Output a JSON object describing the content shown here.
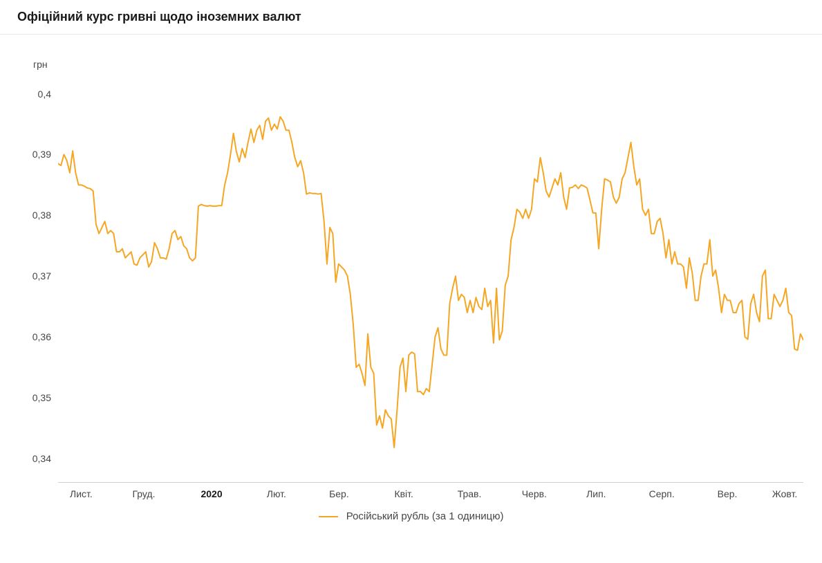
{
  "title": "Офіційний курс гривні щодо іноземних валют",
  "y_axis_title": "грн",
  "legend_label": "Російський рубль (за 1 одиницю)",
  "chart": {
    "type": "line",
    "line_color": "#f5a623",
    "line_width": 2,
    "background_color": "#ffffff",
    "axis_line_color": "#d0d0d0",
    "tick_mark_color": "#d0d0d0",
    "text_color": "#464646",
    "y_ticks": [
      {
        "value": 0.34,
        "label": "0,34"
      },
      {
        "value": 0.35,
        "label": "0,35"
      },
      {
        "value": 0.36,
        "label": "0,36"
      },
      {
        "value": 0.37,
        "label": "0,37"
      },
      {
        "value": 0.38,
        "label": "0,38"
      },
      {
        "value": 0.39,
        "label": "0,39"
      },
      {
        "value": 0.4,
        "label": "0,4"
      }
    ],
    "x_ticks": [
      {
        "x": 0.031,
        "label": "Лист.",
        "bold": false
      },
      {
        "x": 0.115,
        "label": "Груд.",
        "bold": false
      },
      {
        "x": 0.206,
        "label": "2020",
        "bold": true
      },
      {
        "x": 0.293,
        "label": "Лют.",
        "bold": false
      },
      {
        "x": 0.377,
        "label": "Бер.",
        "bold": false
      },
      {
        "x": 0.464,
        "label": "Квіт.",
        "bold": false
      },
      {
        "x": 0.552,
        "label": "Трав.",
        "bold": false
      },
      {
        "x": 0.639,
        "label": "Черв.",
        "bold": false
      },
      {
        "x": 0.722,
        "label": "Лип.",
        "bold": false
      },
      {
        "x": 0.81,
        "label": "Серп.",
        "bold": false
      },
      {
        "x": 0.898,
        "label": "Вер.",
        "bold": false
      },
      {
        "x": 0.975,
        "label": "Жовт.",
        "bold": false
      }
    ],
    "ylim": [
      0.336,
      0.402
    ],
    "series": [
      0.3885,
      0.3882,
      0.39,
      0.389,
      0.387,
      0.3906,
      0.387,
      0.385,
      0.385,
      0.3848,
      0.3845,
      0.3844,
      0.384,
      0.3785,
      0.377,
      0.378,
      0.379,
      0.377,
      0.3775,
      0.377,
      0.374,
      0.374,
      0.3745,
      0.373,
      0.3735,
      0.374,
      0.372,
      0.3718,
      0.373,
      0.3735,
      0.374,
      0.3715,
      0.3724,
      0.3755,
      0.3745,
      0.373,
      0.373,
      0.3728,
      0.3745,
      0.377,
      0.3775,
      0.376,
      0.3765,
      0.375,
      0.3745,
      0.373,
      0.3725,
      0.373,
      0.3815,
      0.3818,
      0.3816,
      0.3815,
      0.3816,
      0.3815,
      0.3815,
      0.3816,
      0.3816,
      0.385,
      0.387,
      0.39,
      0.3935,
      0.3905,
      0.3888,
      0.391,
      0.3895,
      0.392,
      0.3942,
      0.392,
      0.394,
      0.3948,
      0.3925,
      0.3955,
      0.396,
      0.394,
      0.395,
      0.3942,
      0.3962,
      0.3955,
      0.394,
      0.394,
      0.392,
      0.3895,
      0.388,
      0.389,
      0.387,
      0.3835,
      0.3837,
      0.3836,
      0.3836,
      0.3835,
      0.3836,
      0.379,
      0.372,
      0.378,
      0.377,
      0.369,
      0.372,
      0.3715,
      0.371,
      0.37,
      0.367,
      0.362,
      0.355,
      0.3555,
      0.354,
      0.352,
      0.3605,
      0.355,
      0.354,
      0.3455,
      0.347,
      0.345,
      0.348,
      0.347,
      0.3465,
      0.3418,
      0.348,
      0.355,
      0.3565,
      0.351,
      0.357,
      0.3575,
      0.3572,
      0.351,
      0.351,
      0.3505,
      0.3515,
      0.351,
      0.3555,
      0.36,
      0.3615,
      0.358,
      0.357,
      0.357,
      0.3655,
      0.368,
      0.37,
      0.366,
      0.367,
      0.3665,
      0.364,
      0.366,
      0.364,
      0.3665,
      0.365,
      0.3645,
      0.368,
      0.365,
      0.366,
      0.359,
      0.368,
      0.3595,
      0.361,
      0.3685,
      0.37,
      0.376,
      0.378,
      0.381,
      0.3805,
      0.3795,
      0.381,
      0.3795,
      0.381,
      0.386,
      0.3855,
      0.3895,
      0.387,
      0.384,
      0.383,
      0.3845,
      0.386,
      0.385,
      0.387,
      0.383,
      0.381,
      0.3845,
      0.3846,
      0.385,
      0.3844,
      0.385,
      0.3848,
      0.3845,
      0.3825,
      0.3804,
      0.3804,
      0.3745,
      0.381,
      0.386,
      0.3858,
      0.3855,
      0.383,
      0.382,
      0.383,
      0.386,
      0.387,
      0.3895,
      0.392,
      0.388,
      0.385,
      0.386,
      0.381,
      0.38,
      0.381,
      0.377,
      0.377,
      0.379,
      0.3795,
      0.377,
      0.373,
      0.376,
      0.372,
      0.374,
      0.372,
      0.372,
      0.3715,
      0.368,
      0.373,
      0.3705,
      0.366,
      0.366,
      0.37,
      0.372,
      0.372,
      0.376,
      0.37,
      0.371,
      0.368,
      0.364,
      0.367,
      0.366,
      0.366,
      0.364,
      0.364,
      0.3655,
      0.366,
      0.36,
      0.3596,
      0.3655,
      0.367,
      0.364,
      0.3625,
      0.37,
      0.371,
      0.363,
      0.363,
      0.367,
      0.366,
      0.365,
      0.366,
      0.368,
      0.364,
      0.3635,
      0.358,
      0.3578,
      0.3605,
      0.3595
    ]
  }
}
